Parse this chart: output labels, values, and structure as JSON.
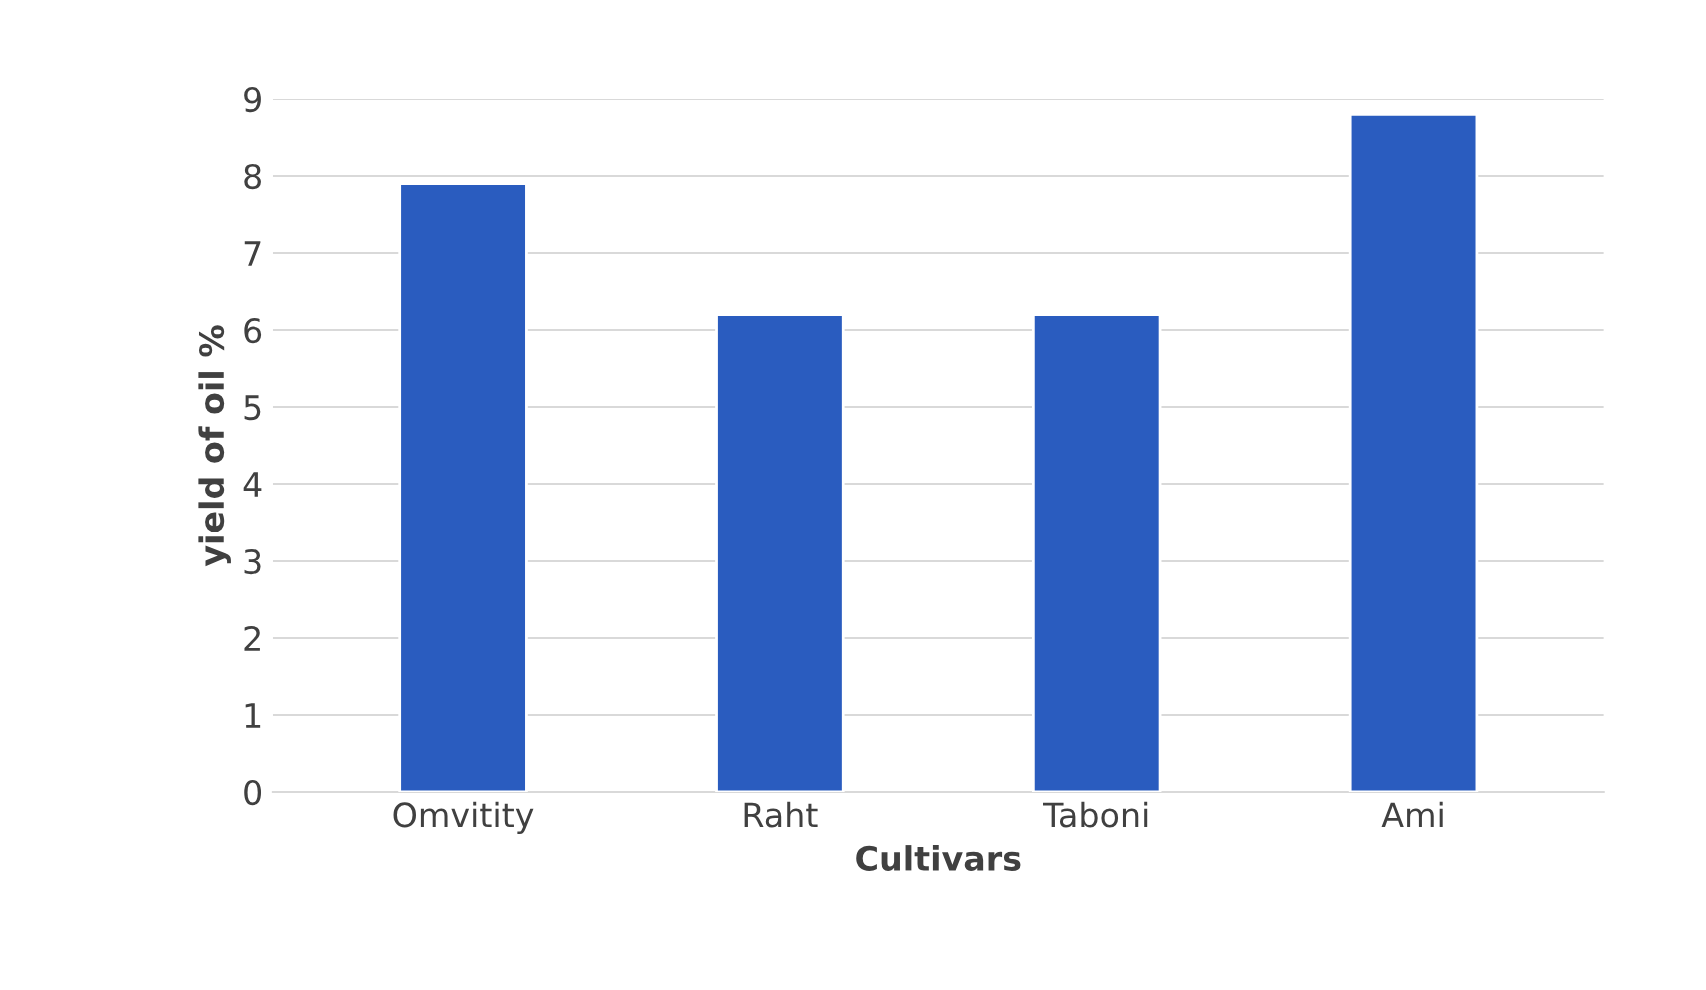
{
  "chart_data": {
    "type": "bar",
    "xlabel": "Cultivars",
    "ylabel": "yield of oil %",
    "categories": [
      "Omvitity",
      "Raht",
      "Taboni",
      "Ami"
    ],
    "values": [
      7.9,
      6.2,
      6.2,
      8.8
    ],
    "color": "#2a5cbf",
    "ylim": [
      0,
      9
    ],
    "yticks": [
      0,
      1,
      2,
      3,
      4,
      5,
      6,
      7,
      8,
      9
    ],
    "grid": "y"
  }
}
